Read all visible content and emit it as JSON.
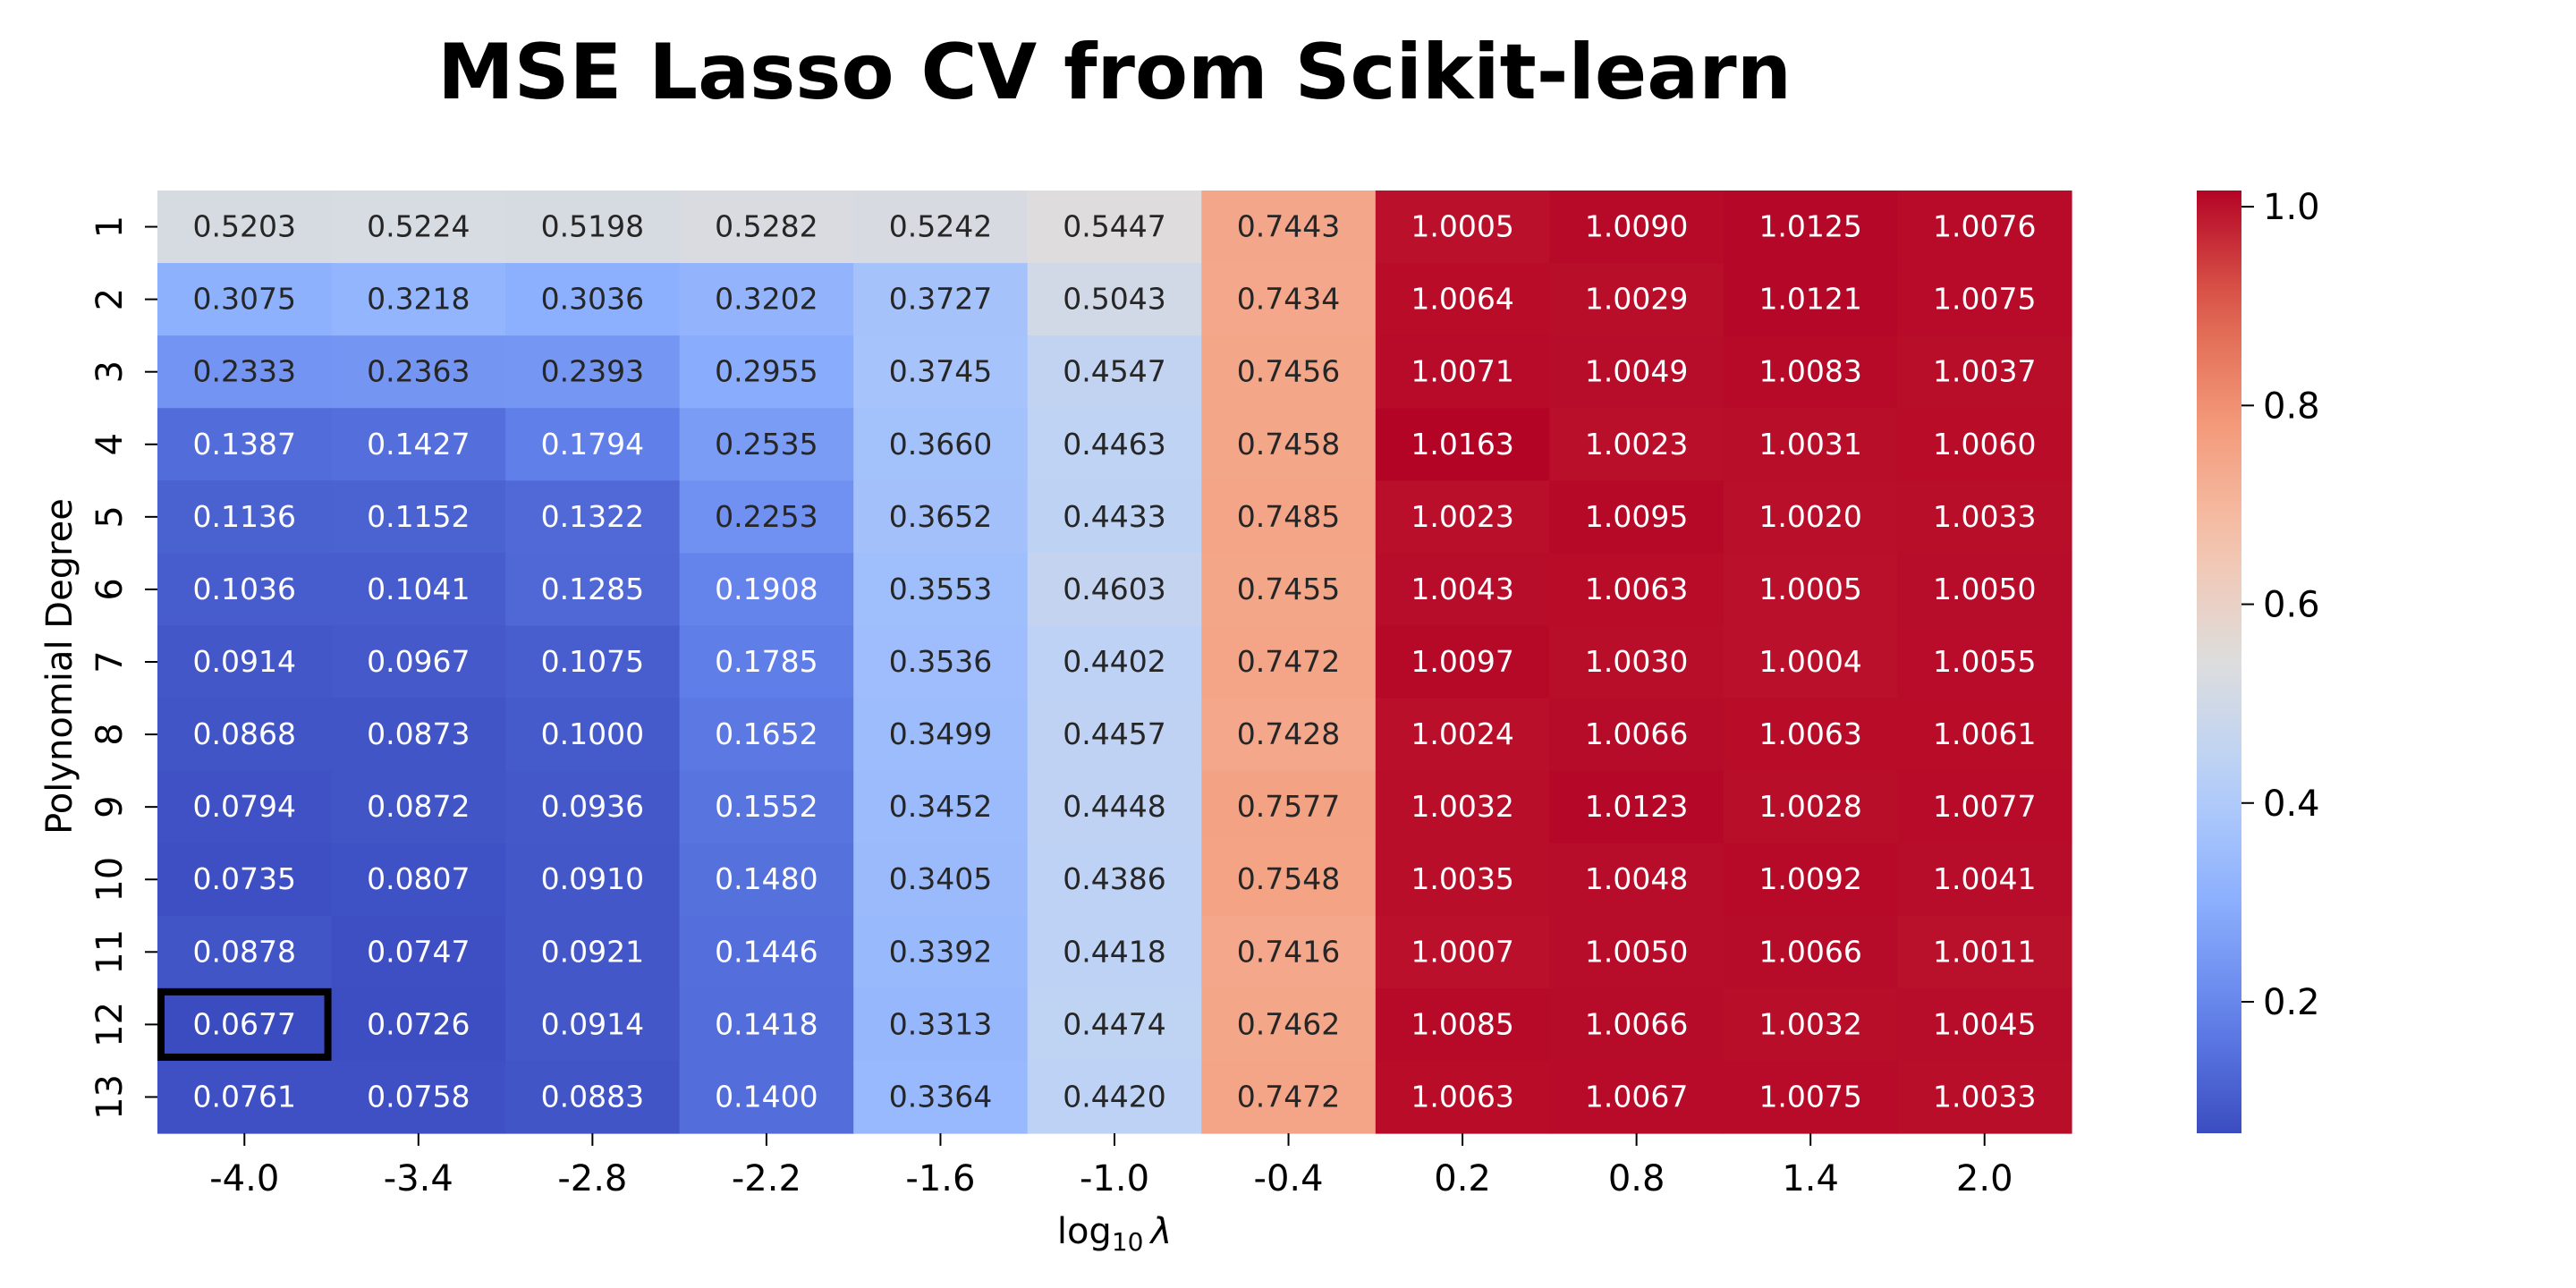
{
  "chart_data": {
    "type": "heatmap",
    "title": "MSE Lasso CV from Scikit-learn",
    "xlabel": "log",
    "xlabel_sub": "10",
    "xlabel_symbol": "λ",
    "ylabel": "Polynomial Degree",
    "x": [
      "-4.0",
      "-3.4",
      "-2.8",
      "-2.2",
      "-1.6",
      "-1.0",
      "-0.4",
      "0.2",
      "0.8",
      "1.4",
      "2.0"
    ],
    "y": [
      "1",
      "2",
      "3",
      "4",
      "5",
      "6",
      "7",
      "8",
      "9",
      "10",
      "11",
      "12",
      "13"
    ],
    "values": [
      [
        0.5203,
        0.5224,
        0.5198,
        0.5282,
        0.5242,
        0.5447,
        0.7443,
        1.0005,
        1.009,
        1.0125,
        1.0076
      ],
      [
        0.3075,
        0.3218,
        0.3036,
        0.3202,
        0.3727,
        0.5043,
        0.7434,
        1.0064,
        1.0029,
        1.0121,
        1.0075
      ],
      [
        0.2333,
        0.2363,
        0.2393,
        0.2955,
        0.3745,
        0.4547,
        0.7456,
        1.0071,
        1.0049,
        1.0083,
        1.0037
      ],
      [
        0.1387,
        0.1427,
        0.1794,
        0.2535,
        0.366,
        0.4463,
        0.7458,
        1.0163,
        1.0023,
        1.0031,
        1.006
      ],
      [
        0.1136,
        0.1152,
        0.1322,
        0.2253,
        0.3652,
        0.4433,
        0.7485,
        1.0023,
        1.0095,
        1.002,
        1.0033
      ],
      [
        0.1036,
        0.1041,
        0.1285,
        0.1908,
        0.3553,
        0.4603,
        0.7455,
        1.0043,
        1.0063,
        1.0005,
        1.005
      ],
      [
        0.0914,
        0.0967,
        0.1075,
        0.1785,
        0.3536,
        0.4402,
        0.7472,
        1.0097,
        1.003,
        1.0004,
        1.0055
      ],
      [
        0.0868,
        0.0873,
        0.1,
        0.1652,
        0.3499,
        0.4457,
        0.7428,
        1.0024,
        1.0066,
        1.0063,
        1.0061
      ],
      [
        0.0794,
        0.0872,
        0.0936,
        0.1552,
        0.3452,
        0.4448,
        0.7577,
        1.0032,
        1.0123,
        1.0028,
        1.0077
      ],
      [
        0.0735,
        0.0807,
        0.091,
        0.148,
        0.3405,
        0.4386,
        0.7548,
        1.0035,
        1.0048,
        1.0092,
        1.0041
      ],
      [
        0.0878,
        0.0747,
        0.0921,
        0.1446,
        0.3392,
        0.4418,
        0.7416,
        1.0007,
        1.005,
        1.0066,
        1.0011
      ],
      [
        0.0677,
        0.0726,
        0.0914,
        0.1418,
        0.3313,
        0.4474,
        0.7462,
        1.0085,
        1.0066,
        1.0032,
        1.0045
      ],
      [
        0.0761,
        0.0758,
        0.0883,
        0.14,
        0.3364,
        0.442,
        0.7472,
        1.0063,
        1.0067,
        1.0075,
        1.0033
      ]
    ],
    "highlight": {
      "row": "12",
      "col": "-4.0"
    },
    "colormap": "coolwarm",
    "colorbar": {
      "range": [
        0.0677,
        1.0163
      ],
      "ticks": [
        0.2,
        0.4,
        0.6,
        0.8,
        1.0
      ],
      "tick_labels": [
        "0.2",
        "0.4",
        "0.6",
        "0.8",
        "1.0"
      ]
    },
    "cell_label_colors": {
      "light": "#ffffff",
      "dark": "#262626"
    },
    "grid": false
  }
}
